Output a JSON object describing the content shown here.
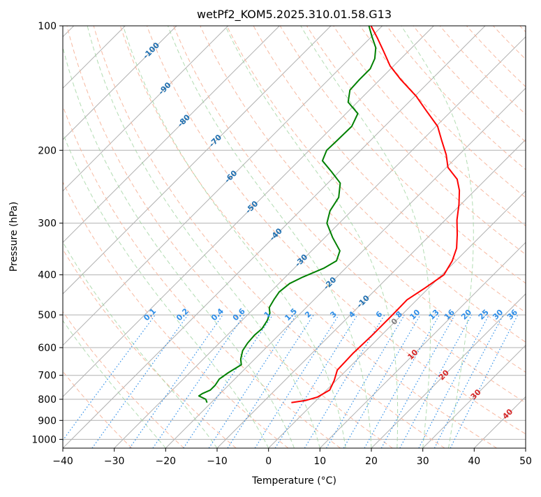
{
  "chart_data": {
    "type": "line",
    "title": "wetPf2_KOM5.2025.310.01.58.G13",
    "xlabel": "Temperature (°C)",
    "ylabel": "Pressure (hPa)",
    "xlim": [
      -40,
      50
    ],
    "ylim": [
      1050,
      100
    ],
    "y_scale": "log",
    "grid": true,
    "x_ticks": [
      "−40",
      "−30",
      "−20",
      "−10",
      "0",
      "10",
      "20",
      "30",
      "40",
      "50"
    ],
    "y_ticks": [
      "100",
      "200",
      "300",
      "400",
      "500",
      "600",
      "700",
      "800",
      "900",
      "1000"
    ],
    "series": [
      {
        "role": "temperature",
        "color": "#ff0000",
        "points": [
          [
            815,
            -4.4
          ],
          [
            805,
            -2.0
          ],
          [
            790,
            -0.4
          ],
          [
            760,
            0.6
          ],
          [
            720,
            -0.4
          ],
          [
            680,
            -1.8
          ],
          [
            620,
            -2.0
          ],
          [
            560,
            -1.8
          ],
          [
            500,
            -1.8
          ],
          [
            460,
            -1.9
          ],
          [
            430,
            -0.7
          ],
          [
            400,
            0.4
          ],
          [
            370,
            -0.7
          ],
          [
            345,
            -2.3
          ],
          [
            320,
            -4.8
          ],
          [
            295,
            -7.7
          ],
          [
            270,
            -10.4
          ],
          [
            250,
            -13.0
          ],
          [
            235,
            -15.6
          ],
          [
            220,
            -19.7
          ],
          [
            205,
            -22.5
          ],
          [
            190,
            -26.0
          ],
          [
            175,
            -29.7
          ],
          [
            160,
            -35.1
          ],
          [
            148,
            -39.7
          ],
          [
            135,
            -45.9
          ],
          [
            125,
            -50.7
          ],
          [
            115,
            -54.9
          ],
          [
            107,
            -58.6
          ],
          [
            100,
            -62.2
          ]
        ]
      },
      {
        "role": "dewpoint",
        "color": "#008000",
        "points": [
          [
            815,
            -20.8
          ],
          [
            800,
            -21.7
          ],
          [
            785,
            -23.7
          ],
          [
            775,
            -23.5
          ],
          [
            760,
            -22.6
          ],
          [
            740,
            -22.6
          ],
          [
            715,
            -23.0
          ],
          [
            690,
            -22.5
          ],
          [
            660,
            -21.5
          ],
          [
            640,
            -22.7
          ],
          [
            610,
            -24.0
          ],
          [
            585,
            -24.5
          ],
          [
            560,
            -24.7
          ],
          [
            540,
            -24.5
          ],
          [
            515,
            -25.1
          ],
          [
            495,
            -26.0
          ],
          [
            480,
            -27.2
          ],
          [
            460,
            -27.8
          ],
          [
            440,
            -28.3
          ],
          [
            420,
            -27.9
          ],
          [
            405,
            -26.6
          ],
          [
            385,
            -24.2
          ],
          [
            370,
            -23.2
          ],
          [
            350,
            -24.5
          ],
          [
            325,
            -28.5
          ],
          [
            300,
            -32.4
          ],
          [
            280,
            -34.2
          ],
          [
            260,
            -35.1
          ],
          [
            240,
            -37.6
          ],
          [
            225,
            -41.6
          ],
          [
            212,
            -45.4
          ],
          [
            200,
            -46.6
          ],
          [
            190,
            -46.5
          ],
          [
            175,
            -46.4
          ],
          [
            163,
            -47.7
          ],
          [
            153,
            -51.8
          ],
          [
            143,
            -53.8
          ],
          [
            135,
            -54.0
          ],
          [
            127,
            -54.0
          ],
          [
            120,
            -55.1
          ],
          [
            113,
            -57.0
          ],
          [
            106,
            -60.0
          ],
          [
            100,
            -62.6
          ]
        ]
      }
    ],
    "background_lines": {
      "dry_adiabats_theta_c": [
        -30,
        -20,
        -10,
        0,
        10,
        20,
        30,
        40,
        50,
        60,
        70,
        80,
        90,
        100,
        110,
        120,
        130,
        140,
        150,
        160,
        170,
        180,
        190,
        200
      ],
      "moist_adiabats_start_c": [
        -20,
        -10,
        0,
        5,
        10,
        15,
        20,
        25,
        30,
        35
      ],
      "mixing_ratio_g_per_kg": [
        "0.1",
        "0.2",
        "0.4",
        "0.6",
        "1",
        "1.5",
        "2",
        "3",
        "4",
        "6",
        "8",
        "10",
        "13",
        "16",
        "20",
        "25",
        "30",
        "36"
      ],
      "isotherm_labels_blue": [
        "-100",
        "-90",
        "-80",
        "-70",
        "-60",
        "-50",
        "-40",
        "-30",
        "-20",
        "-10"
      ],
      "isotherm_label_grey": "0",
      "isotherm_labels_red": [
        "10",
        "20",
        "30",
        "40"
      ]
    }
  }
}
